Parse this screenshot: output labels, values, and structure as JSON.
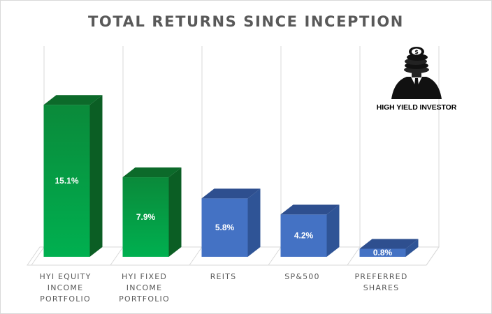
{
  "chart_data": {
    "type": "bar",
    "title": "TOTAL RETURNS SINCE INCEPTION",
    "categories": [
      [
        "HYI EQUITY",
        "INCOME",
        "PORTFOLIO"
      ],
      [
        "HYI FIXED",
        "INCOME",
        "PORTFOLIO"
      ],
      [
        "REITS"
      ],
      [
        "SP&500"
      ],
      [
        "PREFERRED",
        "SHARES"
      ]
    ],
    "values": [
      15.1,
      7.9,
      5.8,
      4.2,
      0.8
    ],
    "data_labels": [
      "15.1%",
      "7.9%",
      "5.8%",
      "4.2%",
      "0.8%"
    ],
    "bar_colors": [
      "green",
      "green",
      "blue",
      "blue",
      "blue"
    ],
    "ylim": [
      0,
      16.5
    ],
    "grid": "vertical",
    "legend": "none",
    "three_d": true
  },
  "colors": {
    "green_front_top": "#00b050",
    "green_front_bottom": "#0a8a3a",
    "green_side": "#0b5e24",
    "green_top": "#0c6a2a",
    "blue_front": "#4472c4",
    "blue_side": "#2f5496",
    "blue_top": "#2e4f8f",
    "title": "#595959"
  },
  "logo": {
    "icon": "investor-silhouette-icon",
    "text": "HIGH YIELD INVESTOR"
  }
}
